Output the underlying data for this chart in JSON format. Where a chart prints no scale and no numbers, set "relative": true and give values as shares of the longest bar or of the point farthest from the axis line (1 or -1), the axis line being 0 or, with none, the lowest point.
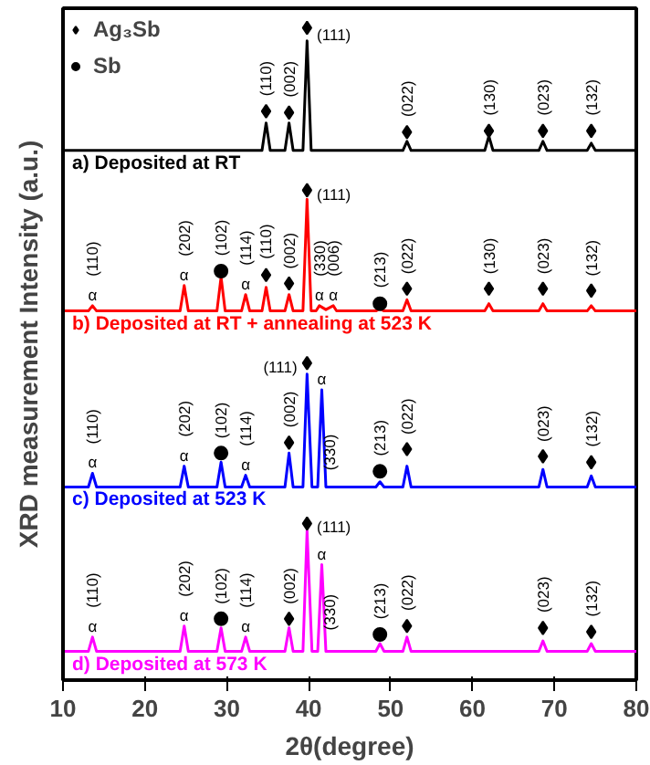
{
  "chart_data": {
    "type": "line",
    "relative": true,
    "xlabel": "2θ(degree)",
    "ylabel": "XRD measurement Intensity (a.u.)",
    "xlim": [
      10,
      80
    ],
    "xticks": [
      10,
      20,
      30,
      40,
      50,
      60,
      70,
      80
    ],
    "grid": false,
    "legend": "top left",
    "line_style": "solid",
    "series": [
      {
        "name": "a) Deposited at RT",
        "color": "#000000",
        "x": [
          10,
          34.3,
          34.8,
          35.3,
          37.1,
          37.6,
          38.1,
          39.3,
          39.8,
          40.3,
          51.5,
          52,
          52.5,
          61.5,
          62,
          62.5,
          68.1,
          68.6,
          69.1,
          74,
          74.5,
          75,
          80
        ],
        "values": [
          0.812,
          0.812,
          0.854,
          0.812,
          0.812,
          0.854,
          0.812,
          0.812,
          0.98,
          0.812,
          0.812,
          0.826,
          0.812,
          0.812,
          0.834,
          0.812,
          0.812,
          0.826,
          0.812,
          0.812,
          0.823,
          0.812,
          0.812
        ]
      },
      {
        "name": "b) Deposited at RT + annealing at 523 K",
        "color": "#ff0000",
        "x": [
          10,
          13.1,
          13.6,
          14.1,
          24.3,
          24.8,
          25.3,
          28.8,
          29.3,
          29.8,
          31.8,
          32.3,
          32.8,
          34.3,
          34.8,
          35.3,
          37.1,
          37.6,
          38.1,
          39.3,
          39.8,
          40.3,
          40.9,
          41.3,
          42.1,
          43.0,
          43.4,
          48.2,
          48.7,
          49.2,
          51.5,
          52,
          52.5,
          61.5,
          62,
          62.5,
          68.1,
          68.6,
          69.1,
          74,
          74.5,
          75,
          80
        ],
        "values": [
          0.566,
          0.566,
          0.574,
          0.566,
          0.566,
          0.605,
          0.566,
          0.566,
          0.618,
          0.566,
          0.566,
          0.591,
          0.566,
          0.566,
          0.602,
          0.566,
          0.566,
          0.591,
          0.566,
          0.566,
          0.737,
          0.566,
          0.566,
          0.574,
          0.568,
          0.574,
          0.566,
          0.566,
          0.569,
          0.566,
          0.566,
          0.583,
          0.566,
          0.566,
          0.577,
          0.566,
          0.566,
          0.577,
          0.566,
          0.566,
          0.574,
          0.566,
          0.566
        ]
      },
      {
        "name": "c) Deposited at 523 K",
        "color": "#0000ff",
        "x": [
          10,
          13.1,
          13.6,
          14.1,
          24.3,
          24.8,
          25.3,
          28.8,
          29.3,
          29.8,
          31.8,
          32.3,
          32.8,
          37.1,
          37.6,
          38.1,
          39.3,
          39.8,
          40.4,
          41.1,
          41.6,
          42.1,
          48.2,
          48.7,
          49.2,
          51.5,
          52,
          52.5,
          68.1,
          68.6,
          69.1,
          74,
          74.5,
          75,
          80
        ],
        "values": [
          0.296,
          0.296,
          0.317,
          0.296,
          0.296,
          0.328,
          0.296,
          0.296,
          0.334,
          0.296,
          0.296,
          0.314,
          0.296,
          0.296,
          0.348,
          0.296,
          0.296,
          0.469,
          0.296,
          0.296,
          0.445,
          0.296,
          0.296,
          0.304,
          0.296,
          0.296,
          0.328,
          0.296,
          0.296,
          0.323,
          0.296,
          0.296,
          0.313,
          0.296,
          0.296
        ]
      },
      {
        "name": "d) Deposited at 573 K",
        "color": "#ff00ff",
        "x": [
          10,
          13.1,
          13.6,
          14.1,
          24.3,
          24.8,
          25.3,
          28.8,
          29.3,
          29.8,
          31.8,
          32.3,
          32.8,
          37.1,
          37.6,
          38.1,
          39.3,
          39.8,
          40.4,
          41.1,
          41.6,
          42.1,
          48.2,
          48.7,
          49.2,
          51.5,
          52,
          52.5,
          68.1,
          68.6,
          69.1,
          74,
          74.5,
          75,
          80
        ],
        "values": [
          0.044,
          0.044,
          0.066,
          0.044,
          0.044,
          0.083,
          0.044,
          0.044,
          0.08,
          0.044,
          0.044,
          0.066,
          0.044,
          0.044,
          0.08,
          0.044,
          0.044,
          0.229,
          0.044,
          0.044,
          0.177,
          0.044,
          0.044,
          0.056,
          0.044,
          0.044,
          0.066,
          0.044,
          0.044,
          0.06,
          0.044,
          0.044,
          0.056,
          0.044,
          0.044
        ]
      },
      {
        "name": "Ag₃Sb",
        "type": "scatter",
        "marker": "diamond",
        "color": "#000000",
        "x": [
          34.8,
          37.6,
          39.8,
          52,
          62,
          68.6,
          74.5,
          34.8,
          37.6,
          39.8,
          52,
          62,
          68.6,
          74.5,
          37.6,
          39.8,
          52,
          68.6,
          74.5,
          37.6,
          39.8,
          52,
          68.6,
          74.5
        ],
        "values": [
          0.872,
          0.87,
          1.0,
          0.84,
          0.842,
          0.842,
          0.842,
          0.621,
          0.608,
          0.751,
          0.6,
          0.6,
          0.6,
          0.597,
          0.364,
          0.486,
          0.354,
          0.343,
          0.334,
          0.094,
          0.24,
          0.083,
          0.08,
          0.074
        ]
      },
      {
        "name": "Sb",
        "type": "scatter",
        "marker": "circle",
        "color": "#000000",
        "x": [
          29.3,
          48.7,
          29.3,
          48.7,
          29.3,
          48.7
        ],
        "values": [
          0.627,
          0.577,
          0.348,
          0.32,
          0.094,
          0.07
        ]
      }
    ],
    "annotations": [
      {
        "text": "(110)",
        "x": 34.8,
        "y": 0.887
      },
      {
        "text": "(002)",
        "x": 37.6,
        "y": 0.885
      },
      {
        "text": "(111)",
        "x": 41.0,
        "y": 0.99
      },
      {
        "text": "(022)",
        "x": 52,
        "y": 0.855
      },
      {
        "text": "(130)",
        "x": 62,
        "y": 0.857
      },
      {
        "text": "(023)",
        "x": 68.6,
        "y": 0.857
      },
      {
        "text": "(132)",
        "x": 74.5,
        "y": 0.857
      },
      {
        "text": "α",
        "x": 13.6,
        "y": 0.574
      },
      {
        "text": "(110)",
        "x": 13.6,
        "y": 0.574
      },
      {
        "text": "α",
        "x": 24.8,
        "y": 0.605
      },
      {
        "text": "(202)",
        "x": 24.8,
        "y": 0.605
      },
      {
        "text": "(102)",
        "x": 29.3,
        "y": 0.642
      },
      {
        "text": "α",
        "x": 32.3,
        "y": 0.591
      },
      {
        "text": "(114)",
        "x": 32.3,
        "y": 0.591
      },
      {
        "text": "(110)",
        "x": 34.8,
        "y": 0.637
      },
      {
        "text": "(002)",
        "x": 37.6,
        "y": 0.622
      },
      {
        "text": "(111)",
        "x": 41.0,
        "y": 0.745
      },
      {
        "text": "α",
        "x": 41.3,
        "y": 0.574
      },
      {
        "text": "α",
        "x": 43.0,
        "y": 0.574
      },
      {
        "text": "(330)",
        "x": 41.3,
        "y": 0.574
      },
      {
        "text": "(006)",
        "x": 43.0,
        "y": 0.574
      },
      {
        "text": "(213)",
        "x": 48.7,
        "y": 0.593
      },
      {
        "text": "(022)",
        "x": 52,
        "y": 0.614
      },
      {
        "text": "(130)",
        "x": 62,
        "y": 0.614
      },
      {
        "text": "(023)",
        "x": 68.6,
        "y": 0.614
      },
      {
        "text": "(132)",
        "x": 74.5,
        "y": 0.611
      },
      {
        "text": "α",
        "x": 13.6,
        "y": 0.317
      },
      {
        "text": "(110)",
        "x": 13.6,
        "y": 0.317
      },
      {
        "text": "α",
        "x": 24.8,
        "y": 0.328
      },
      {
        "text": "(202)",
        "x": 24.8,
        "y": 0.328
      },
      {
        "text": "(102)",
        "x": 29.3,
        "y": 0.362
      },
      {
        "text": "α",
        "x": 32.3,
        "y": 0.314
      },
      {
        "text": "(114)",
        "x": 32.3,
        "y": 0.314
      },
      {
        "text": "(002)",
        "x": 37.6,
        "y": 0.379
      },
      {
        "text": "(111)",
        "x": 38.6,
        "y": 0.48
      },
      {
        "text": "α",
        "x": 41.6,
        "y": 0.445
      },
      {
        "text": "(330)",
        "x": 42.6,
        "y": 0.313
      },
      {
        "text": "(213)",
        "x": 48.7,
        "y": 0.335
      },
      {
        "text": "(022)",
        "x": 52,
        "y": 0.368
      },
      {
        "text": "(023)",
        "x": 68.6,
        "y": 0.357
      },
      {
        "text": "(132)",
        "x": 74.5,
        "y": 0.349
      },
      {
        "text": "α",
        "x": 13.6,
        "y": 0.066
      },
      {
        "text": "(110)",
        "x": 13.6,
        "y": 0.066
      },
      {
        "text": "α",
        "x": 24.8,
        "y": 0.083
      },
      {
        "text": "(202)",
        "x": 24.8,
        "y": 0.083
      },
      {
        "text": "(102)",
        "x": 29.3,
        "y": 0.108
      },
      {
        "text": "α",
        "x": 32.3,
        "y": 0.066
      },
      {
        "text": "(114)",
        "x": 32.3,
        "y": 0.066
      },
      {
        "text": "(002)",
        "x": 37.6,
        "y": 0.108
      },
      {
        "text": "(111)",
        "x": 41.0,
        "y": 0.235
      },
      {
        "text": "α",
        "x": 41.6,
        "y": 0.177
      },
      {
        "text": "(330)",
        "x": 42.6,
        "y": 0.068
      },
      {
        "text": "(213)",
        "x": 48.7,
        "y": 0.085
      },
      {
        "text": "(022)",
        "x": 52,
        "y": 0.098
      },
      {
        "text": "(023)",
        "x": 68.6,
        "y": 0.095
      },
      {
        "text": "(132)",
        "x": 74.5,
        "y": 0.089
      }
    ]
  }
}
